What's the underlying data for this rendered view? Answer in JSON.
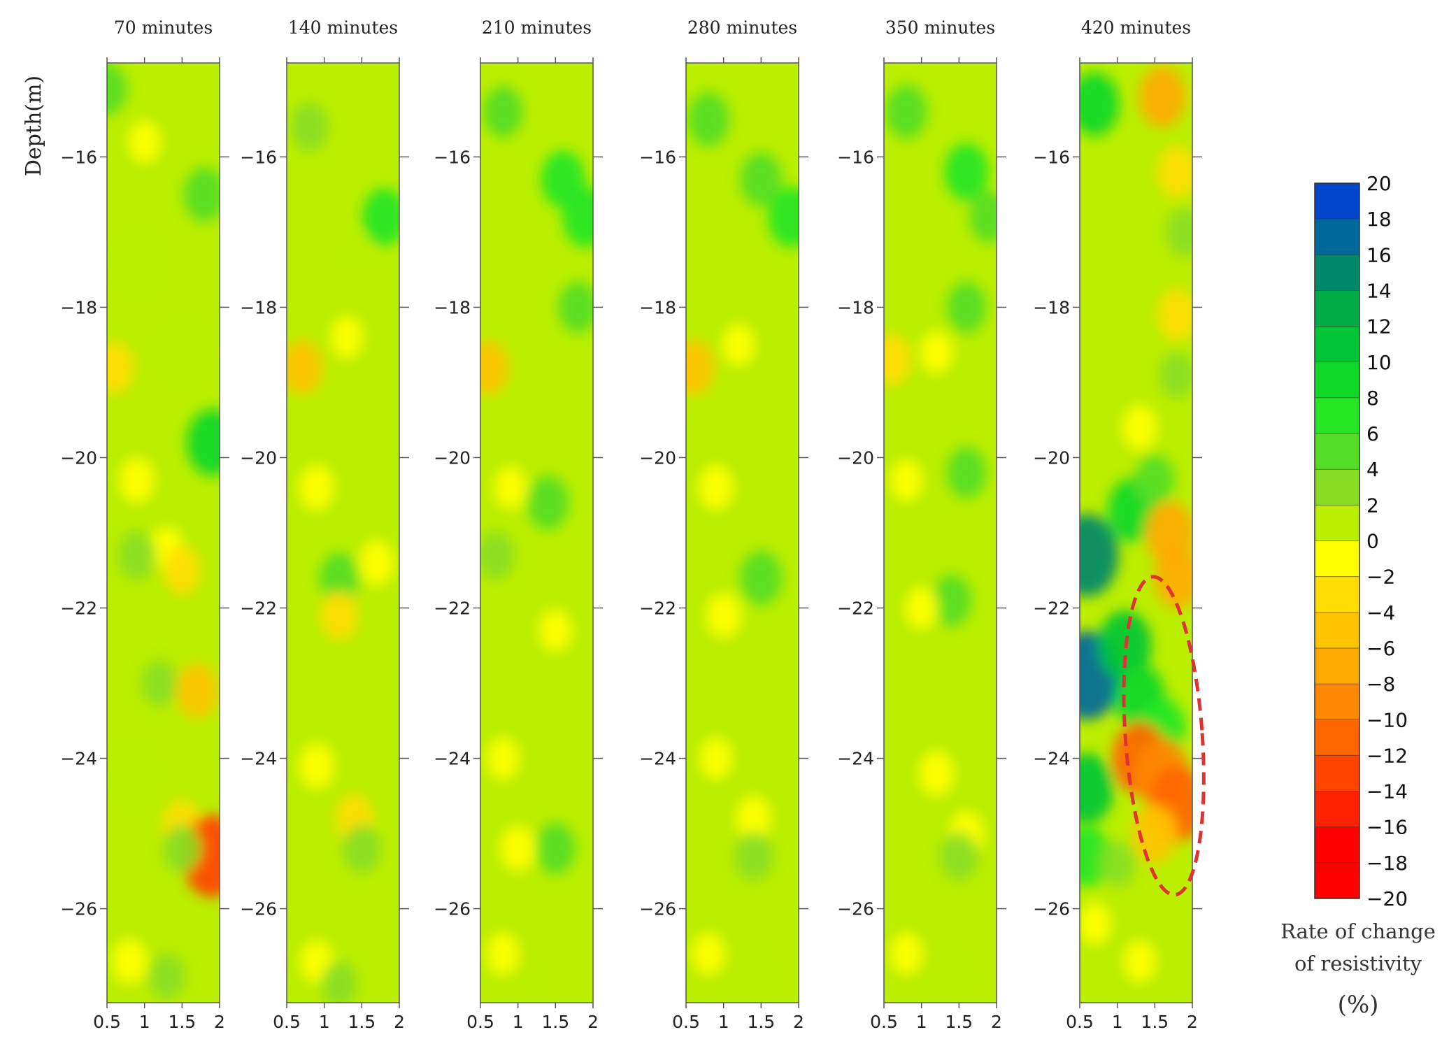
{
  "chart_data": {
    "type": "heatmap",
    "ylabel": "Depth(m)",
    "x_ticks": [
      "0.5",
      "1",
      "1.5",
      "2"
    ],
    "xlim": [
      0.5,
      2
    ],
    "ylim": [
      -27.25,
      -14.75
    ],
    "y_ticks": [
      -16,
      -18,
      -20,
      -22,
      -24,
      -26
    ],
    "panels": [
      {
        "title": "70 minutes",
        "cells": [
          [
            0.5,
            -15.1,
            4
          ],
          [
            1.0,
            -15.8,
            -1
          ],
          [
            1.8,
            -16.5,
            5
          ],
          [
            1.9,
            -19.8,
            9
          ],
          [
            0.9,
            -17.4,
            1
          ],
          [
            0.6,
            -18.8,
            -4
          ],
          [
            1.5,
            -18.6,
            1
          ],
          [
            0.9,
            -20.3,
            -2
          ],
          [
            1.3,
            -21.2,
            -1
          ],
          [
            0.9,
            -21.3,
            3
          ],
          [
            1.5,
            -21.5,
            -3
          ],
          [
            1.2,
            -23.0,
            2
          ],
          [
            1.7,
            -23.1,
            -5
          ],
          [
            0.8,
            -24.2,
            1
          ],
          [
            1.5,
            -24.9,
            -4
          ],
          [
            1.9,
            -25.3,
            -14
          ],
          [
            1.5,
            -25.2,
            3
          ],
          [
            0.8,
            -26.7,
            -2
          ],
          [
            1.3,
            -26.9,
            2
          ]
        ]
      },
      {
        "title": "140 minutes",
        "cells": [
          [
            0.8,
            -15.6,
            3
          ],
          [
            1.8,
            -16.8,
            6
          ],
          [
            0.7,
            -18.8,
            -5
          ],
          [
            1.3,
            -18.4,
            -1
          ],
          [
            0.9,
            -20.4,
            -2
          ],
          [
            1.2,
            -21.6,
            4
          ],
          [
            1.7,
            -21.4,
            -2
          ],
          [
            1.2,
            -22.1,
            -3
          ],
          [
            0.9,
            -24.1,
            -2
          ],
          [
            1.4,
            -24.8,
            -3
          ],
          [
            1.5,
            -25.2,
            3
          ],
          [
            0.9,
            -26.7,
            -1
          ],
          [
            1.2,
            -27.0,
            2
          ],
          [
            1.4,
            -17.3,
            1
          ]
        ]
      },
      {
        "title": "210 minutes",
        "cells": [
          [
            0.8,
            -15.4,
            4
          ],
          [
            1.6,
            -16.3,
            6
          ],
          [
            1.9,
            -16.8,
            7
          ],
          [
            1.8,
            -18.0,
            4
          ],
          [
            0.6,
            -18.8,
            -5
          ],
          [
            0.9,
            -20.4,
            -1
          ],
          [
            1.4,
            -20.6,
            5
          ],
          [
            0.7,
            -21.3,
            3
          ],
          [
            1.5,
            -22.3,
            -1
          ],
          [
            0.8,
            -24.0,
            -1
          ],
          [
            1.5,
            -25.2,
            4
          ],
          [
            1.0,
            -25.2,
            -2
          ],
          [
            1.2,
            -26.9,
            1
          ],
          [
            0.8,
            -26.6,
            -1
          ]
        ]
      },
      {
        "title": "280 minutes",
        "cells": [
          [
            0.8,
            -15.5,
            5
          ],
          [
            1.5,
            -16.3,
            5
          ],
          [
            1.9,
            -16.8,
            7
          ],
          [
            0.6,
            -18.8,
            -5
          ],
          [
            1.2,
            -18.5,
            -1
          ],
          [
            0.9,
            -20.4,
            -2
          ],
          [
            1.5,
            -21.6,
            5
          ],
          [
            1.0,
            -22.1,
            -2
          ],
          [
            0.9,
            -24.0,
            -1
          ],
          [
            1.4,
            -24.8,
            -2
          ],
          [
            1.4,
            -25.3,
            3
          ],
          [
            0.8,
            -26.6,
            -1
          ],
          [
            1.3,
            -26.9,
            1
          ]
        ]
      },
      {
        "title": "350 minutes",
        "cells": [
          [
            0.8,
            -15.4,
            5
          ],
          [
            1.6,
            -16.2,
            6
          ],
          [
            1.9,
            -16.8,
            4
          ],
          [
            1.6,
            -18.0,
            4
          ],
          [
            0.6,
            -18.7,
            -4
          ],
          [
            1.2,
            -18.6,
            -1
          ],
          [
            1.6,
            -20.2,
            4
          ],
          [
            0.8,
            -20.3,
            -1
          ],
          [
            1.4,
            -21.9,
            4
          ],
          [
            1.0,
            -22.0,
            -1
          ],
          [
            1.2,
            -24.2,
            -2
          ],
          [
            1.6,
            -25.0,
            -2
          ],
          [
            1.5,
            -25.3,
            3
          ],
          [
            0.8,
            -26.6,
            -1
          ],
          [
            1.3,
            -26.9,
            1
          ]
        ]
      },
      {
        "title": "420 minutes",
        "cells": [
          [
            0.7,
            -15.3,
            8
          ],
          [
            1.6,
            -15.2,
            -7
          ],
          [
            1.8,
            -16.2,
            -4
          ],
          [
            1.9,
            -17.0,
            3
          ],
          [
            1.8,
            -18.1,
            -4
          ],
          [
            1.3,
            -19.6,
            -2
          ],
          [
            0.6,
            -21.3,
            14
          ],
          [
            1.2,
            -20.7,
            8
          ],
          [
            1.5,
            -20.3,
            4
          ],
          [
            1.7,
            -21.0,
            -8
          ],
          [
            1.8,
            -21.6,
            -7
          ],
          [
            0.6,
            -22.9,
            16
          ],
          [
            1.1,
            -22.5,
            10
          ],
          [
            1.3,
            -23.2,
            9
          ],
          [
            1.6,
            -23.6,
            7
          ],
          [
            1.3,
            -24.0,
            -11
          ],
          [
            1.6,
            -24.2,
            -10
          ],
          [
            1.8,
            -24.6,
            -12
          ],
          [
            1.5,
            -25.0,
            -6
          ],
          [
            0.6,
            -24.4,
            10
          ],
          [
            0.6,
            -25.3,
            7
          ],
          [
            1.0,
            -25.4,
            2
          ],
          [
            0.7,
            -26.2,
            -1
          ],
          [
            1.3,
            -26.7,
            -1
          ],
          [
            1.8,
            -18.9,
            2
          ]
        ]
      }
    ],
    "colorbar": {
      "ticks": [
        "20",
        "18",
        "16",
        "14",
        "12",
        "10",
        "8",
        "6",
        "4",
        "2",
        "0",
        "−2",
        "−4",
        "−6",
        "−8",
        "−10",
        "−12",
        "−14",
        "−16",
        "−18",
        "−20"
      ],
      "range": [
        -20,
        20
      ],
      "colors": {
        "20": "#0033ee",
        "18": "#0046cc",
        "16": "#00689a",
        "14": "#00886a",
        "12": "#00aa44",
        "10": "#00c535",
        "8": "#10d826",
        "6": "#25e625",
        "4": "#55dd25",
        "2": "#88dd22",
        "0": "#bbee00",
        "-2": "#ffff00",
        "-4": "#ffdd00",
        "-6": "#ffc400",
        "-8": "#ffaa00",
        "-10": "#ff8800",
        "-12": "#ff6600",
        "-14": "#ff4400",
        "-16": "#ff2200",
        "-18": "#ff0000"
      },
      "label_line1": "Rate of change",
      "label_line2": "of resistivity",
      "unit": "(%)"
    },
    "annotation_color": "#dd3333"
  }
}
